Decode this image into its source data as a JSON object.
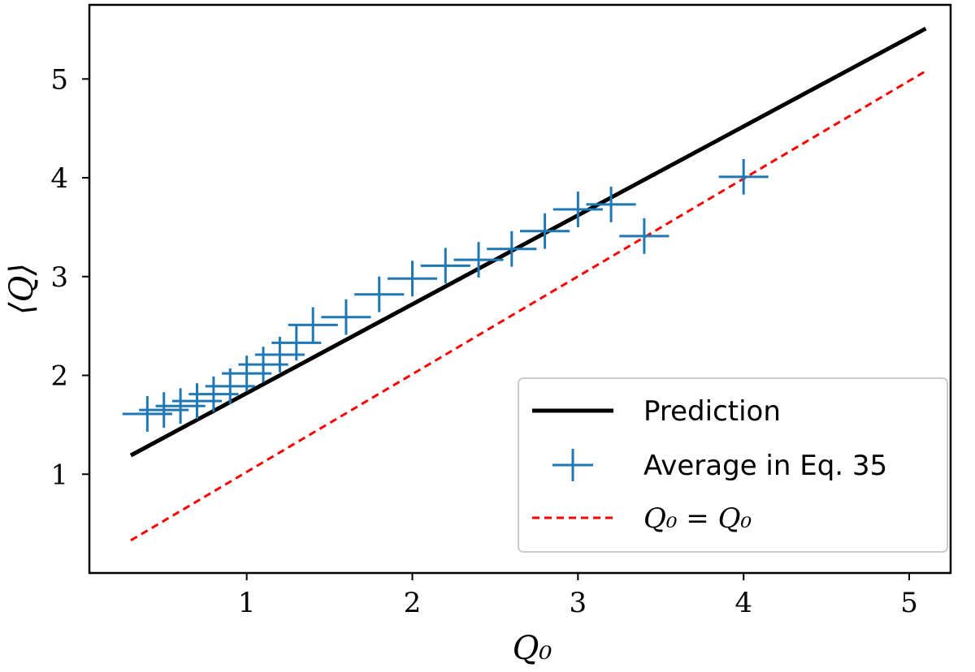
{
  "chart_data": {
    "type": "line",
    "title": "",
    "xlabel": "Q₀",
    "ylabel": "⟨Q⟩",
    "xlim": [
      0.05,
      5.25
    ],
    "ylim": [
      0.0,
      5.75
    ],
    "xticks": [
      1,
      2,
      3,
      4,
      5
    ],
    "yticks": [
      1,
      2,
      3,
      4,
      5
    ],
    "xtick_labels": [
      "1",
      "2",
      "3",
      "4",
      "5"
    ],
    "ytick_labels": [
      "1",
      "2",
      "3",
      "4",
      "5"
    ],
    "grid": false,
    "legend_position": "bottom-right",
    "series": [
      {
        "name": "Prediction",
        "style": "solid",
        "color": "#000000",
        "x": [
          0.3,
          5.1
        ],
        "y": [
          1.19,
          5.51
        ]
      },
      {
        "name": "Average in Eq. 35",
        "style": "errorbar-cross",
        "color": "#1f77b4",
        "x": [
          0.4,
          0.5,
          0.6,
          0.7,
          0.8,
          0.9,
          1.0,
          1.1,
          1.2,
          1.3,
          1.4,
          1.6,
          1.8,
          2.0,
          2.2,
          2.4,
          2.6,
          2.8,
          3.0,
          3.2,
          3.4,
          4.0
        ],
        "y": [
          1.61,
          1.65,
          1.69,
          1.74,
          1.81,
          1.89,
          2.02,
          2.11,
          2.21,
          2.33,
          2.51,
          2.59,
          2.82,
          2.98,
          3.11,
          3.17,
          3.28,
          3.46,
          3.68,
          3.73,
          3.41,
          4.01
        ],
        "xerr": 0.15,
        "yerr": 0.18
      },
      {
        "name": "Q₀ = Q₀",
        "style": "dashed",
        "color": "#ff0000",
        "x": [
          0.3,
          5.1
        ],
        "y": [
          0.33,
          5.08
        ]
      }
    ]
  }
}
